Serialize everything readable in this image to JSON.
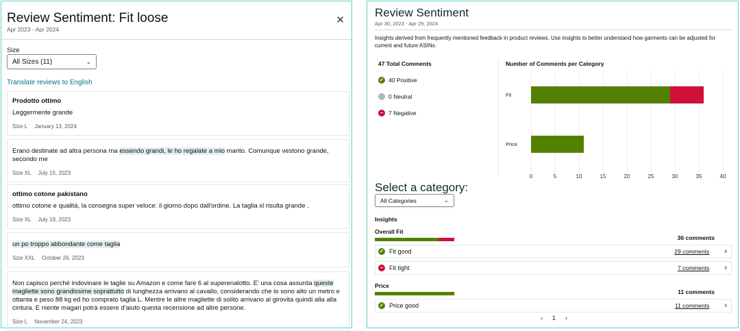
{
  "left": {
    "title": "Review Sentiment: Fit loose",
    "date_range": "Apr 2023 - Apr 2024",
    "size_label": "Size",
    "size_select": "All Sizes (11)",
    "translate_link": "Translate reviews to English",
    "reviews": [
      {
        "title": "Prodotto ottimo",
        "before": "Leggermente grande",
        "highlight": "",
        "after": "",
        "size": "Size L",
        "date": "January 13, 2024"
      },
      {
        "title": "",
        "before": "Erano destinate ad altra persona ma ",
        "highlight": "essendo grandi, le ho regalate a mio",
        "after": " marito. Comunque vestono grande, secondo me",
        "size": "Size XL",
        "date": "July 15, 2023"
      },
      {
        "title": "ottimo cotone pakistano",
        "before": "ottimo cotone e qualità, la consegna super veloce: il giorno dopo dall'ordine. La taglia xl risulta grande .",
        "highlight": "",
        "after": "",
        "size": "Size XL",
        "date": "July 19, 2023"
      },
      {
        "title": "",
        "before": "",
        "highlight": "un po troppo abbondante come taglia",
        "after": "",
        "size": "Size XXL",
        "date": "October 26, 2023"
      },
      {
        "title": "",
        "before": "Non capisco perché indovinare le taglie su Amazon e come fare 6 al superenalotto. E' una cosa assurda ",
        "highlight": "queste magliette sono grandissime soprattutto",
        "after": " di lunghezza arrivano al cavallo, considerando che io sono alto un metro e ottanta e peso 88 kg ed ho comprato taglia L. Mentre le altre magliette di solito arrivano al girovita quindi alla alla cintura. E niente magari potrà essere d'aiuto questa recensione ad altre persone.",
        "size": "Size L",
        "date": "November 24, 2023"
      }
    ]
  },
  "right": {
    "title": "Review Sentiment",
    "date_range": "Apr 30, 2023 - Apr 29, 2024",
    "description": "Insights derived from frequently mentioned feedback in product reviews. Use insights to better understand how garments can be adjusted for current and future ASINs.",
    "summary": {
      "total": "47 Total Comments",
      "positive": "40 Positive",
      "neutral": "0 Neutral",
      "negative": "7 Negative"
    },
    "select_heading": "Select a category:",
    "category_select": "All Categories",
    "insights_label": "Insights",
    "groups": [
      {
        "name": "Overall Fit",
        "total": "36 comments",
        "positive": 29,
        "negative": 7,
        "items": [
          {
            "label": "Fit good",
            "sentiment": "positive",
            "count": "29 comments"
          },
          {
            "label": "Fit tight",
            "sentiment": "negative",
            "count": "7 comments"
          }
        ]
      },
      {
        "name": "Price",
        "total": "11 comments",
        "positive": 11,
        "negative": 0,
        "items": [
          {
            "label": "Price good",
            "sentiment": "positive",
            "count": "11 comments"
          }
        ]
      }
    ],
    "pagination": {
      "page": "1"
    }
  },
  "colors": {
    "positive": "#538000",
    "negative": "#d0103a",
    "neutral": "#aab7b8",
    "link": "#007185",
    "border": "#5ccfc6"
  },
  "chart_data": {
    "type": "bar",
    "orientation": "horizontal",
    "stacked": true,
    "title": "Number of Comments per Category",
    "categories": [
      "Fit",
      "Price"
    ],
    "series": [
      {
        "values": [
          29,
          11
        ],
        "color": "#538000"
      },
      {
        "values": [
          7,
          0
        ],
        "color": "#d0103a"
      }
    ],
    "xlim": [
      0,
      40
    ],
    "xticks": [
      0,
      5,
      10,
      15,
      20,
      25,
      30,
      35,
      40
    ],
    "grid": true
  }
}
